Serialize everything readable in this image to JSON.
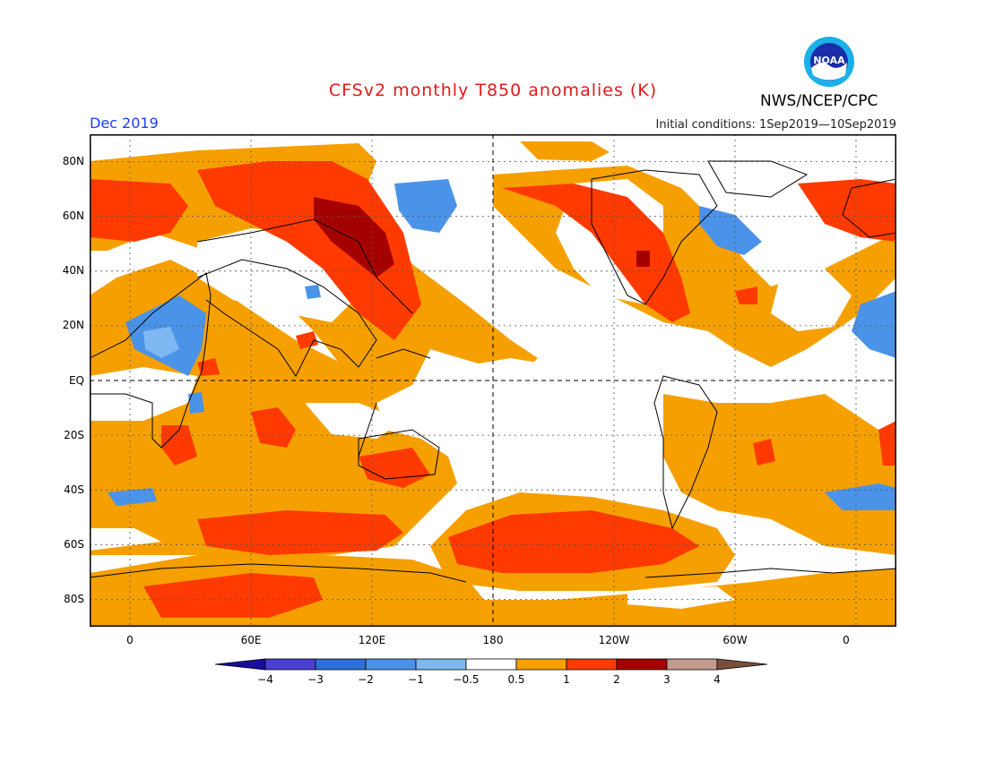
{
  "header": {
    "title": "CFSv2 monthly T850 anomalies (K)",
    "month": "Dec 2019",
    "initial_conditions": "Initial conditions: 1Sep2019—10Sep2019",
    "agency": "NWS/NCEP/CPC",
    "logo_text": "NOAA"
  },
  "map": {
    "lat_labels": [
      "80N",
      "60N",
      "40N",
      "20N",
      "EQ",
      "20S",
      "40S",
      "60S",
      "80S"
    ],
    "lon_labels": [
      "0",
      "60E",
      "120E",
      "180",
      "120W",
      "60W",
      "0"
    ],
    "lon_range": [
      -20,
      380
    ],
    "lat_range": [
      -90,
      90
    ]
  },
  "colorbar": {
    "labels": [
      "−4",
      "−3",
      "−2",
      "−1",
      "−0.5",
      "0.5",
      "1",
      "2",
      "3",
      "4"
    ],
    "colors": [
      "#1a0c9c",
      "#4a3fd0",
      "#2d6fd6",
      "#4a93e8",
      "#7fb8f0",
      "#ffffff",
      "#f5a000",
      "#ff3a00",
      "#a50000",
      "#c49a8c",
      "#7a4f3a"
    ]
  }
}
